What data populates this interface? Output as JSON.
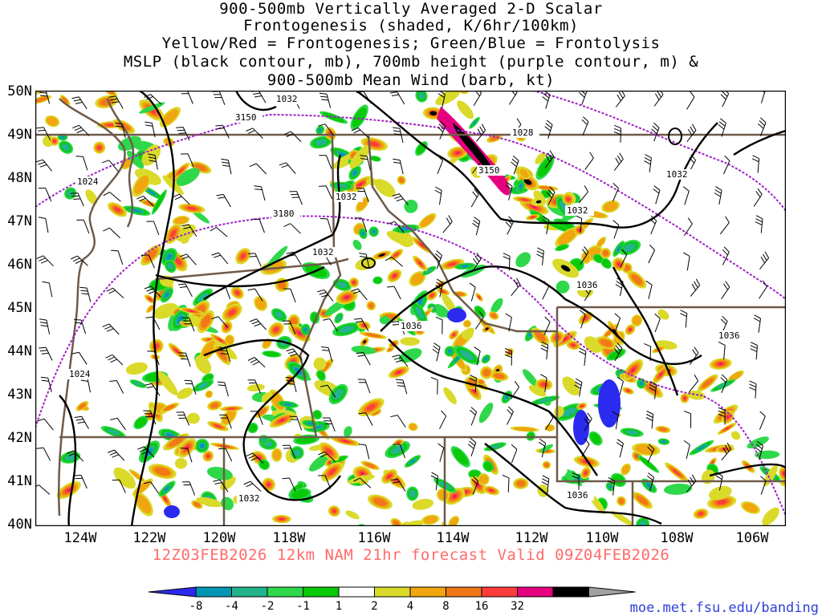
{
  "title": {
    "line1": "900-500mb Vertically Averaged 2-D Scalar",
    "line2": "Frontogenesis (shaded, K/6hr/100km)",
    "line3": "Yellow/Red = Frontogenesis;  Green/Blue = Frontolysis",
    "line4": "MSLP (black contour, mb), 700mb height (purple contour, m) &",
    "line5": "900-500mb Mean Wind (barb, kt)"
  },
  "valid_line": "12Z03FEB2026 12km NAM 21hr forecast Valid 09Z04FEB2026",
  "credit": "moe.met.fsu.edu/banding",
  "lat_labels": [
    "50N",
    "49N",
    "48N",
    "47N",
    "46N",
    "45N",
    "44N",
    "43N",
    "42N",
    "41N",
    "40N"
  ],
  "lon_labels": [
    "124W",
    "122W",
    "120W",
    "118W",
    "116W",
    "114W",
    "112W",
    "110W",
    "108W",
    "106W"
  ],
  "colorbar": {
    "labels": [
      "-8",
      "-4",
      "-2",
      "-1",
      "1",
      "2",
      "4",
      "8",
      "16",
      "32"
    ],
    "colors": [
      "#2b2bf0",
      "#0096b4",
      "#22b48c",
      "#2ed84a",
      "#09c909",
      "#ffffff",
      "#dada2a",
      "#f0a60e",
      "#f07818",
      "#ff3c3c",
      "#e6007f",
      "#000000",
      "#a0a0a0"
    ]
  },
  "contour_labels": {
    "mslp": [
      "1032",
      "1028",
      "1032",
      "1032",
      "1032",
      "1032",
      "1036",
      "1036",
      "1036",
      "1024",
      "1024",
      "1032",
      "1036"
    ],
    "height": [
      "3150",
      "3150",
      "3180"
    ]
  },
  "colors": {
    "mslp": "#000000",
    "height": "#a020c8",
    "borders": "#6e5a4a",
    "title": "#000000",
    "valid": "#ff6a6a",
    "credit": "#2c3fd8"
  }
}
